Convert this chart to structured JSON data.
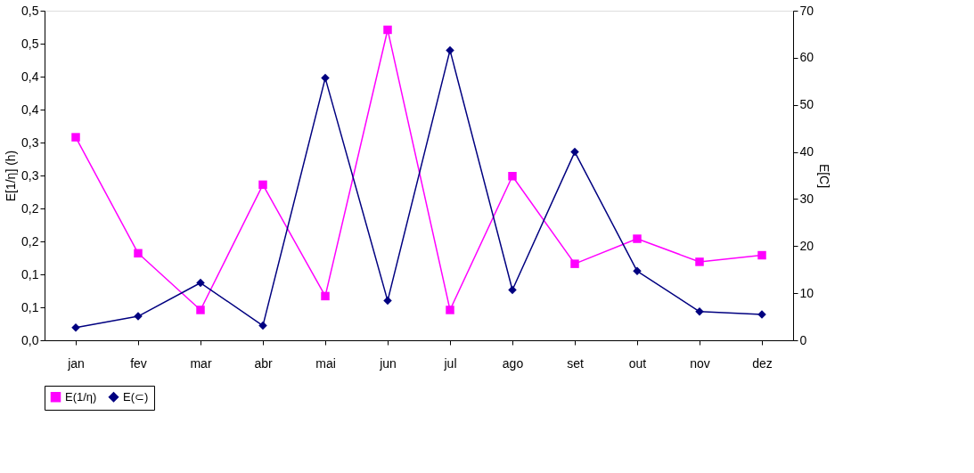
{
  "chart_data": {
    "type": "line",
    "ylabel": "E[1/η] (h)",
    "y2label": "E[C]",
    "categories": [
      "jan",
      "fev",
      "mar",
      "abr",
      "mai",
      "jun",
      "jul",
      "ago",
      "set",
      "out",
      "nov",
      "dez"
    ],
    "series": [
      {
        "name": "E(1/η)",
        "color": "#ff00ff",
        "marker": "square",
        "values": [
          0.308,
          0.132,
          0.046,
          0.236,
          0.067,
          0.471,
          0.046,
          0.249,
          0.116,
          0.154,
          0.119,
          0.129
        ]
      },
      {
        "name": "E(⊂)",
        "color": "#000080",
        "marker": "diamond",
        "axis": "y2",
        "values": [
          2.7,
          5.1,
          12.2,
          3.1,
          55.7,
          8.4,
          61.6,
          10.7,
          40.0,
          14.7,
          6.1,
          5.5
        ]
      }
    ],
    "ylim": [
      0,
      0.5
    ],
    "yticks": [
      {
        "value": 0,
        "label": "0,0"
      },
      {
        "value": 0.05,
        "label": "0,1"
      },
      {
        "value": 0.1,
        "label": "0,1"
      },
      {
        "value": 0.15,
        "label": "0,2"
      },
      {
        "value": 0.2,
        "label": "0,2"
      },
      {
        "value": 0.25,
        "label": "0,3"
      },
      {
        "value": 0.3,
        "label": "0,3"
      },
      {
        "value": 0.35,
        "label": "0,4"
      },
      {
        "value": 0.4,
        "label": "0,4"
      },
      {
        "value": 0.45,
        "label": "0,5"
      },
      {
        "value": 0.5,
        "label": "0,5"
      }
    ],
    "y2lim": [
      0,
      70
    ],
    "y2ticks": [
      0,
      10,
      20,
      30,
      40,
      50,
      60,
      70
    ],
    "grid": false,
    "legend": "bottom",
    "line_style": "solid"
  }
}
